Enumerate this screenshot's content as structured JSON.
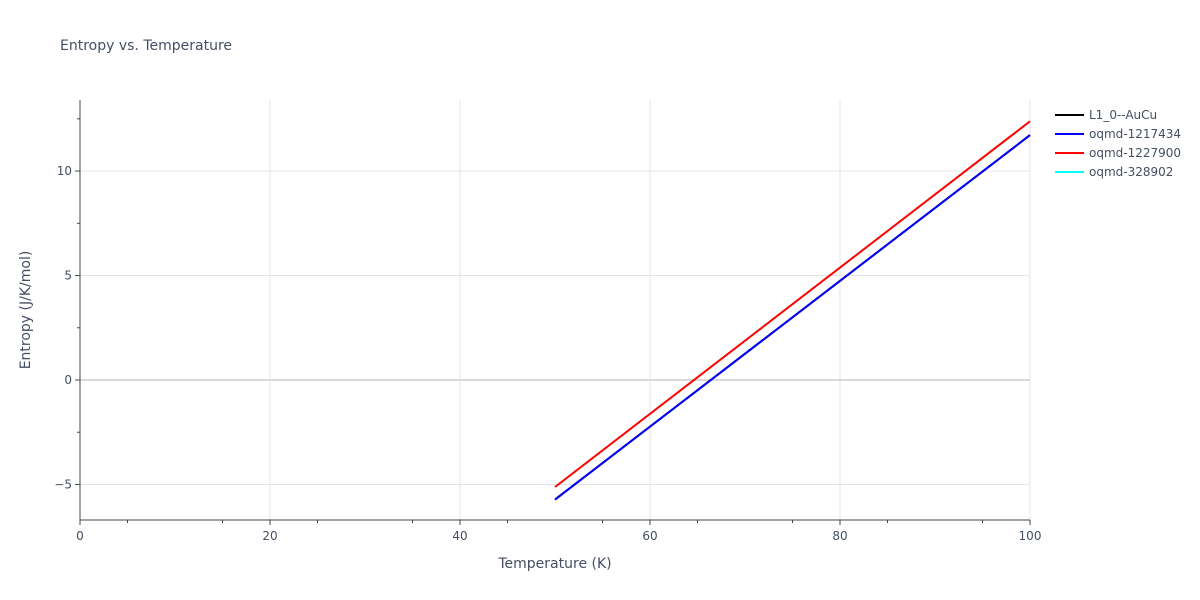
{
  "chart_data": {
    "type": "line",
    "title": "Entropy vs. Temperature",
    "xlabel": "Temperature (K)",
    "ylabel": "Entropy (J/K/mol)",
    "xlim": [
      0,
      100
    ],
    "ylim": [
      -6.7,
      13.4
    ],
    "xticks": [
      0,
      20,
      40,
      60,
      80,
      100
    ],
    "xtick_labels": [
      "0",
      "20",
      "40",
      "60",
      "80",
      "100"
    ],
    "yticks": [
      -5,
      0,
      5,
      10
    ],
    "ytick_labels": [
      "−5",
      "0",
      "5",
      "10"
    ],
    "grid": true,
    "legend_position": "top-right",
    "series": [
      {
        "name": "L1_0--AuCu",
        "color": "#000000",
        "x": [
          50,
          100
        ],
        "y": [
          -5.72,
          11.72
        ]
      },
      {
        "name": "oqmd-1217434",
        "color": "#0000ff",
        "x": [
          50,
          100
        ],
        "y": [
          -5.72,
          11.72
        ]
      },
      {
        "name": "oqmd-1227900",
        "color": "#ff0000",
        "x": [
          50,
          100
        ],
        "y": [
          -5.12,
          12.38
        ]
      },
      {
        "name": "oqmd-328902",
        "color": "#00ffff",
        "x": [],
        "y": []
      }
    ]
  }
}
